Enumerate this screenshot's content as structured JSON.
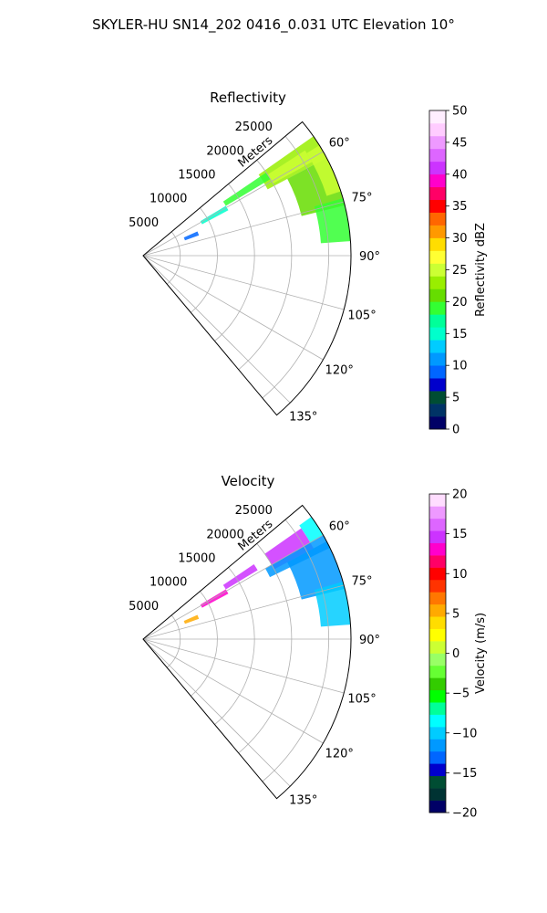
{
  "figure": {
    "suptitle": "SKYLER-HU  SN14_202  0416_0.031 UTC Elevation 10°"
  },
  "chart_data": [
    {
      "type": "polar-sector",
      "title": "Reflectivity",
      "range_label": "Meters",
      "theta_range_deg": [
        50,
        140
      ],
      "range_max": 28000,
      "range_ticks": [
        5000,
        10000,
        15000,
        20000,
        25000
      ],
      "range_tick_labels": [
        "5000",
        "10000",
        "15000",
        "20000",
        "25000"
      ],
      "angle_ticks_deg": [
        60,
        75,
        90,
        105,
        120,
        135
      ],
      "angle_tick_labels": [
        "60°",
        "75°",
        "90°",
        "105°",
        "120°",
        "135°"
      ],
      "grid": true,
      "colorbar": {
        "label": "Reflectivity dBZ",
        "min": 0,
        "max": 50,
        "ticks": [
          0,
          5,
          10,
          15,
          20,
          25,
          30,
          35,
          40,
          45,
          50
        ],
        "tick_labels": [
          "0",
          "5",
          "10",
          "15",
          "20",
          "25",
          "30",
          "35",
          "40",
          "45",
          "50"
        ],
        "colors": [
          "#000066",
          "#003366",
          "#004d33",
          "#0000cc",
          "#0066ff",
          "#0099ff",
          "#00ccff",
          "#00ffcc",
          "#00ff99",
          "#33ff33",
          "#66dd00",
          "#99ee00",
          "#ccff33",
          "#ffff33",
          "#ffdd00",
          "#ff9900",
          "#ff6600",
          "#ff0000",
          "#ff0066",
          "#ff00cc",
          "#cc33ff",
          "#dd66ff",
          "#ee99ff",
          "#ffccff",
          "#ffeeff"
        ]
      },
      "echo_regions": [
        {
          "range": [
            19000,
            28000
          ],
          "az": [
            55,
            62
          ],
          "value": 22
        },
        {
          "range": [
            20000,
            26000
          ],
          "az": [
            57,
            61
          ],
          "value": 25
        },
        {
          "range": [
            22000,
            28000
          ],
          "az": [
            62,
            76
          ],
          "value": 21
        },
        {
          "range": [
            24000,
            28000
          ],
          "az": [
            74,
            86
          ],
          "value": 18
        },
        {
          "range": [
            13000,
            20000
          ],
          "az": [
            56,
            59
          ],
          "value": 19
        },
        {
          "range": [
            9000,
            13000
          ],
          "az": [
            59,
            62
          ],
          "value": 14
        },
        {
          "range": [
            6000,
            8000
          ],
          "az": [
            66,
            70
          ],
          "value": 8
        },
        {
          "range": [
            26000,
            28000
          ],
          "az": [
            58,
            72
          ],
          "value": 24
        }
      ]
    },
    {
      "type": "polar-sector",
      "title": "Velocity",
      "range_label": "Meters",
      "theta_range_deg": [
        50,
        140
      ],
      "range_max": 28000,
      "range_ticks": [
        5000,
        10000,
        15000,
        20000,
        25000
      ],
      "range_tick_labels": [
        "5000",
        "10000",
        "15000",
        "20000",
        "25000"
      ],
      "angle_ticks_deg": [
        60,
        75,
        90,
        105,
        120,
        135
      ],
      "angle_tick_labels": [
        "60°",
        "75°",
        "90°",
        "105°",
        "120°",
        "135°"
      ],
      "grid": true,
      "colorbar": {
        "label": "Velocity (m/s)",
        "min": -20,
        "max": 20,
        "ticks": [
          -20,
          -15,
          -10,
          -5,
          0,
          5,
          10,
          15,
          20
        ],
        "tick_labels": [
          "−20",
          "−15",
          "−10",
          "−5",
          "0",
          "5",
          "10",
          "15",
          "20"
        ],
        "colors": [
          "#000066",
          "#003333",
          "#004d33",
          "#0000cc",
          "#0066ff",
          "#0099ff",
          "#00ccff",
          "#00ffff",
          "#00ff99",
          "#00ff00",
          "#33cc00",
          "#66ff33",
          "#99ff66",
          "#ccff33",
          "#ffff00",
          "#ffdd00",
          "#ffaa00",
          "#ff7700",
          "#ff3300",
          "#ff0000",
          "#ff0066",
          "#ff00cc",
          "#cc33ff",
          "#dd66ff",
          "#ee99ff",
          "#ffddff"
        ]
      },
      "echo_regions": [
        {
          "range": [
            20000,
            26000
          ],
          "az": [
            55,
            62
          ],
          "value": 15
        },
        {
          "range": [
            19000,
            28000
          ],
          "az": [
            60,
            64
          ],
          "value": -12
        },
        {
          "range": [
            22000,
            28000
          ],
          "az": [
            62,
            76
          ],
          "value": -11
        },
        {
          "range": [
            24000,
            28000
          ],
          "az": [
            74,
            86
          ],
          "value": -10
        },
        {
          "range": [
            13000,
            18000
          ],
          "az": [
            56,
            59
          ],
          "value": 15
        },
        {
          "range": [
            9000,
            13000
          ],
          "az": [
            59,
            62
          ],
          "value": 13
        },
        {
          "range": [
            6000,
            8000
          ],
          "az": [
            66,
            70
          ],
          "value": 5
        },
        {
          "range": [
            26000,
            28000
          ],
          "az": [
            54,
            60
          ],
          "value": -9
        }
      ]
    }
  ]
}
